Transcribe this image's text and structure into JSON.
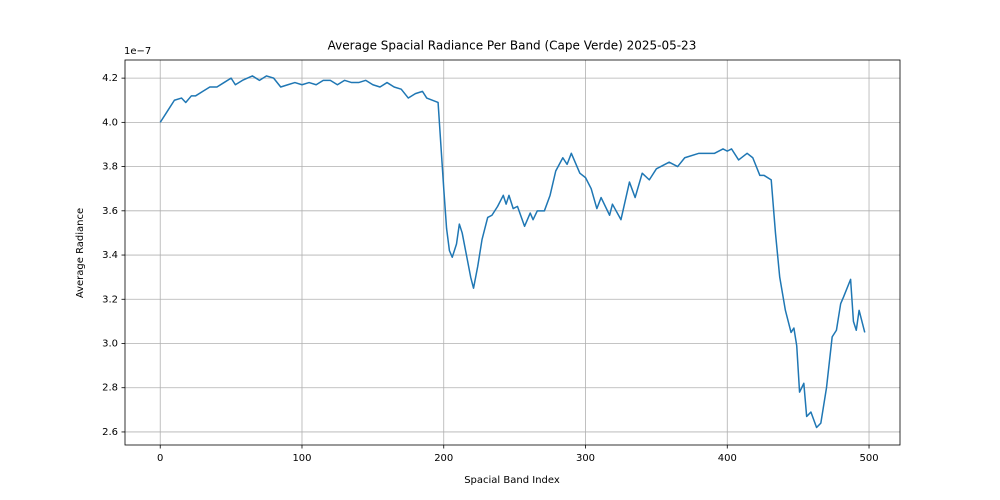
{
  "chart_data": {
    "type": "line",
    "title": "Average Spacial Radiance Per Band (Cape Verde) 2025-05-23",
    "x_label": "Spacial Band Index",
    "y_label": "Average Radiance",
    "y_offset_label": "1e−7",
    "color": "#1f77b4",
    "grid": true,
    "xlim": [
      -24.85,
      521.85
    ],
    "ylim": [
      2.541,
      4.282
    ],
    "xticks": [
      0,
      100,
      200,
      300,
      400,
      500
    ],
    "yticks": [
      2.6,
      2.8,
      {
        "value": 3,
        "label": "3.0"
      },
      3.2,
      3.4,
      3.6,
      3.8,
      {
        "value": 4,
        "label": "4.0"
      },
      4.2
    ],
    "x": [
      0,
      5,
      10,
      15,
      18,
      22,
      25,
      30,
      35,
      40,
      45,
      50,
      53,
      58,
      65,
      70,
      75,
      80,
      85,
      90,
      95,
      100,
      105,
      110,
      115,
      120,
      125,
      130,
      135,
      140,
      145,
      150,
      155,
      160,
      165,
      170,
      175,
      180,
      185,
      188,
      196,
      200,
      202,
      204,
      206,
      209,
      211,
      213,
      216,
      219,
      221,
      224,
      227,
      231,
      234,
      238,
      242,
      244,
      246,
      249,
      252,
      257,
      261,
      263,
      266,
      271,
      275,
      279,
      284,
      287,
      290,
      296,
      300,
      304,
      308,
      311,
      317,
      319,
      325,
      331,
      335,
      340,
      345,
      350,
      359,
      365,
      370,
      380,
      391,
      397,
      400,
      403,
      408,
      414,
      418,
      423,
      426,
      431,
      434,
      437,
      441,
      445,
      447,
      449,
      451,
      454,
      456,
      459,
      463,
      466,
      470,
      474,
      477,
      480,
      482,
      487,
      489,
      491,
      493,
      497
    ],
    "values": [
      4.0,
      4.05,
      4.1,
      4.11,
      4.09,
      4.12,
      4.12,
      4.14,
      4.16,
      4.16,
      4.18,
      4.2,
      4.17,
      4.19,
      4.21,
      4.19,
      4.21,
      4.2,
      4.16,
      4.17,
      4.18,
      4.17,
      4.18,
      4.17,
      4.19,
      4.19,
      4.17,
      4.19,
      4.18,
      4.18,
      4.19,
      4.17,
      4.16,
      4.18,
      4.16,
      4.15,
      4.11,
      4.13,
      4.14,
      4.11,
      4.09,
      3.7,
      3.52,
      3.42,
      3.39,
      3.45,
      3.54,
      3.5,
      3.4,
      3.3,
      3.25,
      3.35,
      3.47,
      3.57,
      3.58,
      3.62,
      3.67,
      3.63,
      3.67,
      3.61,
      3.62,
      3.53,
      3.59,
      3.56,
      3.6,
      3.6,
      3.67,
      3.78,
      3.84,
      3.81,
      3.86,
      3.77,
      3.75,
      3.7,
      3.61,
      3.66,
      3.58,
      3.63,
      3.56,
      3.73,
      3.66,
      3.77,
      3.74,
      3.79,
      3.82,
      3.8,
      3.84,
      3.86,
      3.86,
      3.88,
      3.87,
      3.88,
      3.83,
      3.86,
      3.84,
      3.76,
      3.76,
      3.74,
      3.5,
      3.3,
      3.15,
      3.05,
      3.07,
      2.99,
      2.78,
      2.82,
      2.67,
      2.69,
      2.62,
      2.64,
      2.8,
      3.03,
      3.06,
      3.18,
      3.21,
      3.29,
      3.1,
      3.06,
      3.15,
      3.05
    ]
  }
}
